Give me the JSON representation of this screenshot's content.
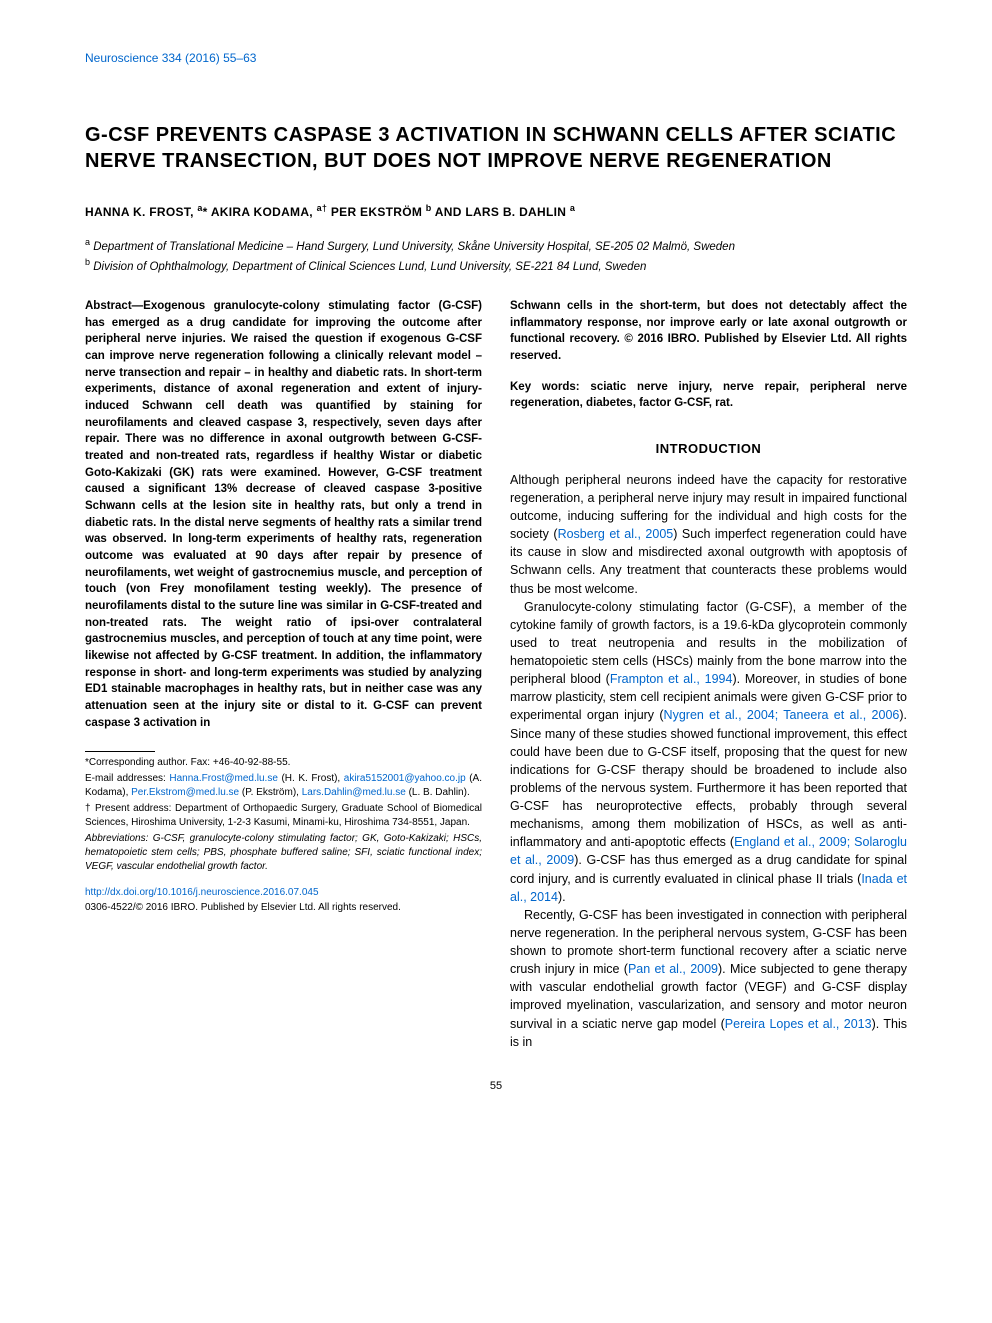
{
  "journal_ref": "Neuroscience 334 (2016) 55–63",
  "title": "G-CSF PREVENTS CASPASE 3 ACTIVATION IN SCHWANN CELLS AFTER SCIATIC NERVE TRANSECTION, BUT DOES NOT IMPROVE NERVE REGENERATION",
  "authors_html": "HANNA K. FROST, <sup>a</sup>* AKIRA KODAMA, <sup>a†</sup> PER EKSTRÖM <sup>b</sup> AND LARS B. DAHLIN <sup>a</sup>",
  "affiliations": [
    {
      "sup": "a",
      "text": "Department of Translational Medicine – Hand Surgery, Lund University, Skåne University Hospital, SE-205 02 Malmö, Sweden"
    },
    {
      "sup": "b",
      "text": "Division of Ophthalmology, Department of Clinical Sciences Lund, Lund University, SE-221 84 Lund, Sweden"
    }
  ],
  "abstract_part1": "Abstract—Exogenous granulocyte-colony stimulating factor (G-CSF) has emerged as a drug candidate for improving the outcome after peripheral nerve injuries. We raised the question if exogenous G-CSF can improve nerve regeneration following a clinically relevant model – nerve transection and repair – in healthy and diabetic rats. In short-term experiments, distance of axonal regeneration and extent of injury-induced Schwann cell death was quantified by staining for neurofilaments and cleaved caspase 3, respectively, seven days after repair. There was no difference in axonal outgrowth between G-CSF-treated and non-treated rats, regardless if healthy Wistar or diabetic Goto-Kakizaki (GK) rats were examined. However, G-CSF treatment caused a significant 13% decrease of cleaved caspase 3-positive Schwann cells at the lesion site in healthy rats, but only a trend in diabetic rats. In the distal nerve segments of healthy rats a similar trend was observed. In long-term experiments of healthy rats, regeneration outcome was evaluated at 90 days after repair by presence of neurofilaments, wet weight of gastrocnemius muscle, and perception of touch (von Frey monofilament testing weekly). The presence of neurofilaments distal to the suture line was similar in G-CSF-treated and non-treated rats. The weight ratio of ipsi-over contralateral gastrocnemius muscles, and perception of touch at any time point, were likewise not affected by G-CSF treatment. In addition, the inflammatory response in short- and long-term experiments was studied by analyzing ED1 stainable macrophages in healthy rats, but in neither case was any attenuation seen at the injury site or distal to it. G-CSF can prevent caspase 3 activation in",
  "abstract_part2": "Schwann cells in the short-term, but does not detectably affect the inflammatory response, nor improve early or late axonal outgrowth or functional recovery. © 2016 IBRO. Published by Elsevier Ltd. All rights reserved.",
  "keywords": "Key words: sciatic nerve injury, nerve repair, peripheral nerve regeneration, diabetes, factor G-CSF, rat.",
  "intro_heading": "INTRODUCTION",
  "intro_p1_pre": "Although peripheral neurons indeed have the capacity for restorative regeneration, a peripheral nerve injury may result in impaired functional outcome, inducing suffering for the individual and high costs for the society (",
  "intro_p1_cite1": "Rosberg et al., 2005",
  "intro_p1_post": ") Such imperfect regeneration could have its cause in slow and misdirected axonal outgrowth with apoptosis of Schwann cells. Any treatment that counteracts these problems would thus be most welcome.",
  "intro_p2_a": "Granulocyte-colony stimulating factor (G-CSF), a member of the cytokine family of growth factors, is a 19.6-kDa glycoprotein commonly used to treat neutropenia and results in the mobilization of hematopoietic stem cells (HSCs) mainly from the bone marrow into the peripheral blood (",
  "intro_p2_cite1": "Frampton et al., 1994",
  "intro_p2_b": "). Moreover, in studies of bone marrow plasticity, stem cell recipient animals were given G-CSF prior to experimental organ injury (",
  "intro_p2_cite2": "Nygren et al., 2004; Taneera et al., 2006",
  "intro_p2_c": "). Since many of these studies showed functional improvement, this effect could have been due to G-CSF itself, proposing that the quest for new indications for G-CSF therapy should be broadened to include also problems of the nervous system. Furthermore it has been reported that G-CSF has neuroprotective effects, probably through several mechanisms, among them mobilization of HSCs, as well as anti-inflammatory and anti-apoptotic effects (",
  "intro_p2_cite3": "England et al., 2009; Solaroglu et al., 2009",
  "intro_p2_d": "). G-CSF has thus emerged as a drug candidate for spinal cord injury, and is currently evaluated in clinical phase II trials (",
  "intro_p2_cite4": "Inada et al., 2014",
  "intro_p2_e": ").",
  "intro_p3_a": "Recently, G-CSF has been investigated in connection with peripheral nerve regeneration. In the peripheral nervous system, G-CSF has been shown to promote short-term functional recovery after a sciatic nerve crush injury in mice (",
  "intro_p3_cite1": "Pan et al., 2009",
  "intro_p3_b": "). Mice subjected to gene therapy with vascular endothelial growth factor (VEGF) and G-CSF display improved myelination, vascularization, and sensory and motor neuron survival in a sciatic nerve gap model (",
  "intro_p3_cite2": "Pereira Lopes et al., 2013",
  "intro_p3_c": "). This is in",
  "footnotes": {
    "corresponding": "*Corresponding author. Fax: +46-40-92-88-55.",
    "emails_label": "E-mail addresses:",
    "emails": [
      {
        "email": "Hanna.Frost@med.lu.se",
        "who": "(H. K. Frost),"
      },
      {
        "email": "akira5152001@yahoo.co.jp",
        "who": "(A. Kodama),"
      },
      {
        "email": "Per.Ekstrom@med.lu.se",
        "who": "(P. Ekström),"
      },
      {
        "email": "Lars.Dahlin@med.lu.se",
        "who": "(L. B. Dahlin)."
      }
    ],
    "present_addr": "† Present address: Department of Orthopaedic Surgery, Graduate School of Biomedical Sciences, Hiroshima University, 1-2-3 Kasumi, Minami-ku, Hiroshima 734-8551, Japan.",
    "abbrev": "Abbreviations: G-CSF, granulocyte-colony stimulating factor; GK, Goto-Kakizaki; HSCs, hematopoietic stem cells; PBS, phosphate buffered saline; SFI, sciatic functional index; VEGF, vascular endothelial growth factor."
  },
  "doi": "http://dx.doi.org/10.1016/j.neuroscience.2016.07.045",
  "copyright": "0306-4522/© 2016 IBRO. Published by Elsevier Ltd. All rights reserved.",
  "page_num": "55",
  "colors": {
    "link": "#0066cc",
    "text": "#000000",
    "background": "#ffffff"
  }
}
